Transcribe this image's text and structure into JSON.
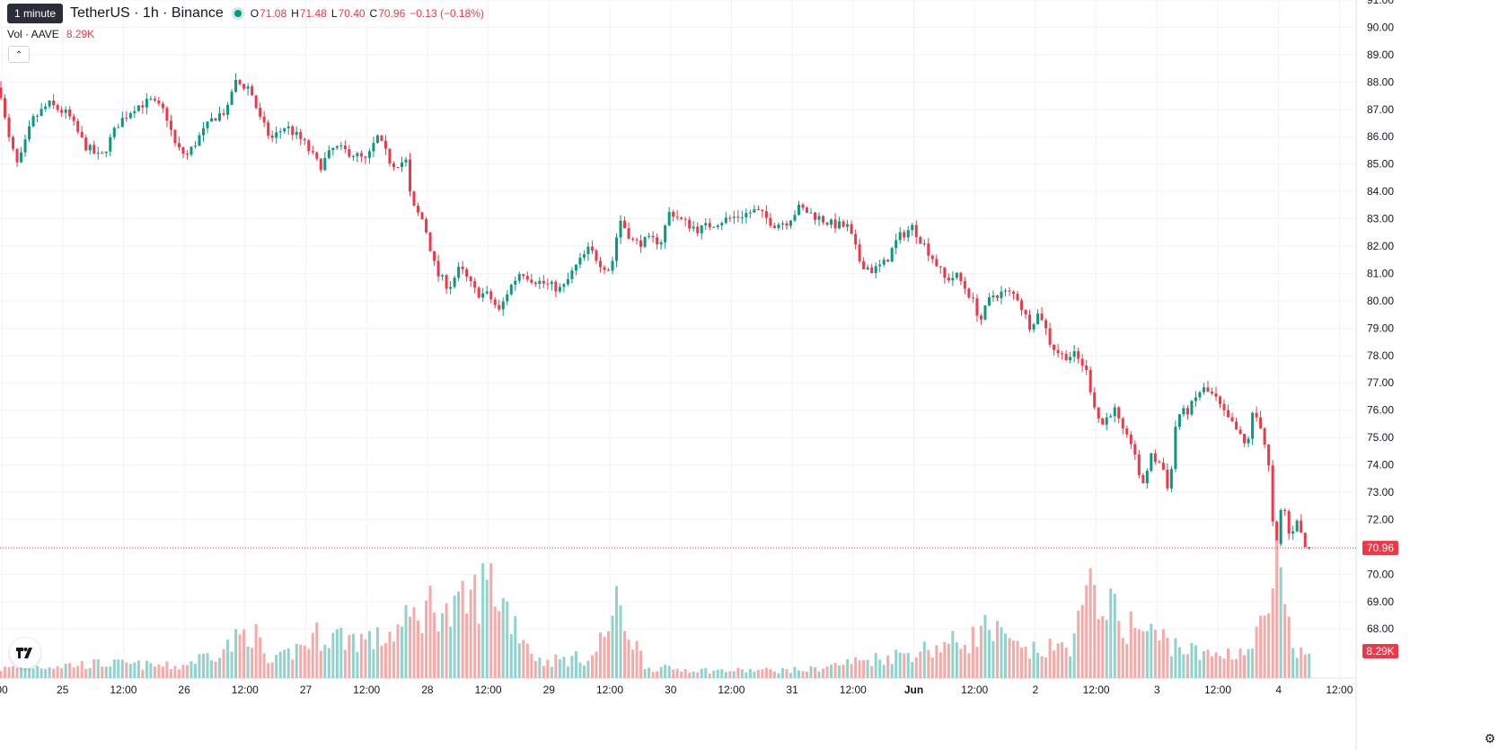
{
  "tooltip": "1 minute",
  "legend": {
    "symbol": "TetherUS · 1h · Binance",
    "o_key": "O",
    "o": "71.08",
    "h_key": "H",
    "h": "71.48",
    "l_key": "L",
    "l": "70.40",
    "c_key": "C",
    "c": "70.96",
    "change": "−0.13 (−0.18%)"
  },
  "volume_legend": {
    "label": "Vol · AAVE",
    "value": "8.29K"
  },
  "colors": {
    "up": "#089981",
    "down": "#f23645",
    "up_vol": "#92d2cc",
    "down_vol": "#f7a9a7",
    "grid": "#f0f3fa",
    "text": "#131722"
  },
  "icons": {
    "collapse": "chevron-up-icon",
    "logo": "tradingview-logo-icon",
    "settings": "gear-icon"
  },
  "chart_data": {
    "type": "candlestick",
    "interval": "1h",
    "ylim": [
      67.0,
      91.0
    ],
    "y_ticks": [
      "91.00",
      "90.00",
      "89.00",
      "88.00",
      "87.00",
      "86.00",
      "85.00",
      "84.00",
      "83.00",
      "82.00",
      "81.00",
      "80.00",
      "79.00",
      "78.00",
      "77.00",
      "76.00",
      "75.00",
      "74.00",
      "73.00",
      "72.00",
      "71.00",
      "70.00",
      "69.00",
      "68.00"
    ],
    "x_tick_labels": [
      "00",
      "25",
      "12:00",
      "26",
      "12:00",
      "27",
      "12:00",
      "28",
      "12:00",
      "29",
      "12:00",
      "30",
      "12:00",
      "31",
      "12:00",
      "Jun",
      "12:00",
      "2",
      "12:00",
      "3",
      "12:00",
      "4",
      "12:00"
    ],
    "last_price_label": "70.96",
    "last_volume_label": "8.29K",
    "close_anchors": [
      [
        0,
        87.8
      ],
      [
        8,
        86.1
      ],
      [
        20,
        84.9
      ],
      [
        36,
        86.6
      ],
      [
        54,
        87.2
      ],
      [
        76,
        86.8
      ],
      [
        94,
        85.7
      ],
      [
        112,
        85.2
      ],
      [
        132,
        86.5
      ],
      [
        150,
        87.1
      ],
      [
        168,
        87.3
      ],
      [
        184,
        86.9
      ],
      [
        196,
        85.6
      ],
      [
        208,
        85.3
      ],
      [
        222,
        86.0
      ],
      [
        238,
        86.7
      ],
      [
        254,
        87.0
      ],
      [
        260,
        88.0
      ],
      [
        278,
        87.8
      ],
      [
        290,
        86.6
      ],
      [
        302,
        85.9
      ],
      [
        318,
        86.4
      ],
      [
        338,
        85.8
      ],
      [
        356,
        84.9
      ],
      [
        372,
        85.6
      ],
      [
        392,
        85.4
      ],
      [
        408,
        85.1
      ],
      [
        420,
        86.0
      ],
      [
        436,
        85.0
      ],
      [
        452,
        85.1
      ],
      [
        458,
        83.5
      ],
      [
        472,
        82.9
      ],
      [
        486,
        81.0
      ],
      [
        500,
        80.5
      ],
      [
        512,
        81.2
      ],
      [
        530,
        80.3
      ],
      [
        544,
        80.2
      ],
      [
        556,
        79.6
      ],
      [
        566,
        80.4
      ],
      [
        580,
        81.1
      ],
      [
        592,
        80.8
      ],
      [
        608,
        80.6
      ],
      [
        626,
        80.4
      ],
      [
        640,
        81.2
      ],
      [
        656,
        81.9
      ],
      [
        668,
        81.4
      ],
      [
        680,
        81.1
      ],
      [
        690,
        83.0
      ],
      [
        706,
        82.1
      ],
      [
        722,
        82.2
      ],
      [
        736,
        82.2
      ],
      [
        746,
        83.3
      ],
      [
        760,
        82.9
      ],
      [
        778,
        82.6
      ],
      [
        800,
        82.9
      ],
      [
        822,
        83.1
      ],
      [
        842,
        83.3
      ],
      [
        862,
        82.8
      ],
      [
        876,
        82.9
      ],
      [
        890,
        83.4
      ],
      [
        908,
        83.1
      ],
      [
        926,
        82.8
      ],
      [
        944,
        82.7
      ],
      [
        958,
        81.4
      ],
      [
        972,
        81.1
      ],
      [
        986,
        81.4
      ],
      [
        1000,
        82.3
      ],
      [
        1016,
        82.7
      ],
      [
        1028,
        82.1
      ],
      [
        1040,
        81.5
      ],
      [
        1052,
        80.8
      ],
      [
        1066,
        80.9
      ],
      [
        1080,
        80.2
      ],
      [
        1092,
        79.3
      ],
      [
        1104,
        80.2
      ],
      [
        1118,
        80.3
      ],
      [
        1132,
        80.2
      ],
      [
        1146,
        79.1
      ],
      [
        1158,
        79.6
      ],
      [
        1170,
        78.4
      ],
      [
        1182,
        78.0
      ],
      [
        1196,
        78.0
      ],
      [
        1208,
        77.6
      ],
      [
        1218,
        76.3
      ],
      [
        1226,
        75.4
      ],
      [
        1240,
        76.1
      ],
      [
        1252,
        75.0
      ],
      [
        1262,
        74.8
      ],
      [
        1270,
        73.1
      ],
      [
        1282,
        74.3
      ],
      [
        1294,
        74.0
      ],
      [
        1302,
        73.0
      ],
      [
        1310,
        75.8
      ],
      [
        1324,
        76.0
      ],
      [
        1338,
        76.8
      ],
      [
        1352,
        76.5
      ],
      [
        1364,
        75.8
      ],
      [
        1376,
        75.3
      ],
      [
        1388,
        74.6
      ],
      [
        1394,
        75.8
      ],
      [
        1402,
        75.7
      ],
      [
        1412,
        74.2
      ],
      [
        1420,
        70.5
      ],
      [
        1428,
        72.8
      ],
      [
        1436,
        71.3
      ],
      [
        1444,
        72.1
      ],
      [
        1452,
        71.0
      ],
      [
        1458,
        70.96
      ]
    ],
    "volume_anchors": [
      [
        0,
        0.9
      ],
      [
        60,
        1.2
      ],
      [
        120,
        1.4
      ],
      [
        200,
        1.1
      ],
      [
        258,
        3.2
      ],
      [
        280,
        4.8
      ],
      [
        300,
        1.2
      ],
      [
        356,
        4.2
      ],
      [
        420,
        3.6
      ],
      [
        450,
        5.0
      ],
      [
        486,
        7.5
      ],
      [
        500,
        5.6
      ],
      [
        546,
        9.3
      ],
      [
        600,
        1.6
      ],
      [
        660,
        2.0
      ],
      [
        688,
        6.8
      ],
      [
        720,
        1.0
      ],
      [
        800,
        0.7
      ],
      [
        900,
        0.8
      ],
      [
        960,
        1.7
      ],
      [
        1000,
        2.2
      ],
      [
        1080,
        3.7
      ],
      [
        1098,
        4.8
      ],
      [
        1140,
        2.4
      ],
      [
        1190,
        3.0
      ],
      [
        1220,
        9.0
      ],
      [
        1244,
        5.5
      ],
      [
        1300,
        3.6
      ],
      [
        1340,
        2.1
      ],
      [
        1394,
        2.8
      ],
      [
        1416,
        7.5
      ],
      [
        1422,
        10.5
      ],
      [
        1440,
        2.1
      ],
      [
        1458,
        2.5
      ]
    ],
    "volume_ylim": [
      0,
      12
    ]
  }
}
